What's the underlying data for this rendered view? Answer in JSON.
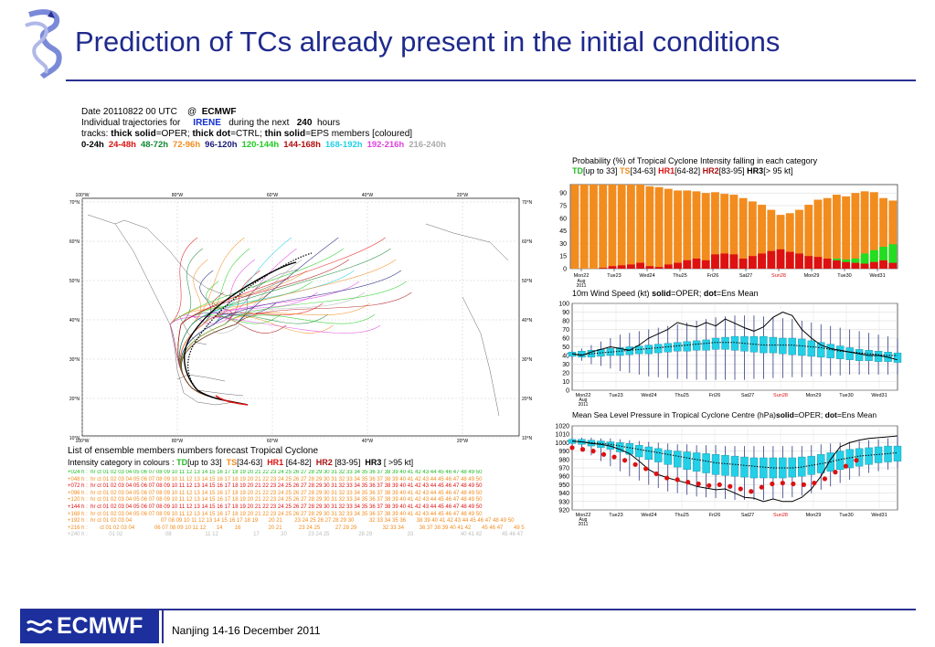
{
  "slide": {
    "title": "Prediction of TCs already present in the initial conditions",
    "footer": "Nanjing 14-16  December 2011",
    "logo_text": "ECMWF",
    "accent": "#2a3192"
  },
  "traj": {
    "l1_a": "Date 20110822 00 UTC",
    "l1_b": "@",
    "l1_c": "ECMWF",
    "l2_a": "Individual trajectories for",
    "l2_b": "IRENE",
    "l2_c": "during the next",
    "l2_d": "240",
    "l2_e": "hours",
    "l3_a": "tracks:",
    "l3_b": "thick solid",
    "l3_c": "=OPER;",
    "l3_d": "thick dot",
    "l3_e": "=CTRL;",
    "l3_f": "thin solid",
    "l3_g": "=EPS members [coloured]",
    "bands": [
      {
        "label": "0-24h",
        "color": "#000000"
      },
      {
        "label": "24-48h",
        "color": "#e01010"
      },
      {
        "label": "48-72h",
        "color": "#118833"
      },
      {
        "label": "72-96h",
        "color": "#f28c1e"
      },
      {
        "label": "96-120h",
        "color": "#1a1a7a"
      },
      {
        "label": "120-144h",
        "color": "#22cc22"
      },
      {
        "label": "144-168h",
        "color": "#b01010"
      },
      {
        "label": "168-192h",
        "color": "#22d0e8"
      },
      {
        "label": "192-216h",
        "color": "#e040e0"
      },
      {
        "label": "216-240h",
        "color": "#aaaaaa"
      }
    ]
  },
  "map": {
    "lon_labels": [
      "100°W",
      "80°W",
      "60°W",
      "40°W",
      "20°W"
    ],
    "lat_labels": [
      "70°N",
      "60°N",
      "50°N",
      "40°N",
      "30°N",
      "20°N",
      "10°N"
    ]
  },
  "ens": {
    "title": "List of ensemble members numbers forecast Tropical Cyclone",
    "l2_a": "Intensity category in colours :",
    "td": "TD",
    "td_r": "[up to 33]",
    "ts": "TS",
    "ts_r": "[34-63]",
    "hr1": "HR1",
    "hr1_r": "[64-82]",
    "hr2": "HR2",
    "hr2_r": "[83-95]",
    "hr3": "HR3",
    "hr3_r": "[ >95 kt]",
    "rows": [
      "+024 h :  hr ct 01 02 03 04 05 06 07 08 09 10 11 12 13 14 15 16 17 18 19 20 21 22 23 24 25 26 27 28 29 30 31 32 33 34 35 36 37 38 39 40 41 42 43 44 45 46 47 48 49 50",
      "+048 h :  hr ct 01 02 03 04 05 06 07 08 09 10 11 12 13 14 15 16 17 18 19 20 21 22 23 24 25 26 27 28 29 30 31 32 33 34 35 36 37 38 39 40 41 42 43 44 45 46 47 48 49 50",
      "+072 h :  hr ct 01 02 03 04 05 06 07 08 09 10 11 12 13 14 15 16 17 18 19 20 21 22 23 24 25 26 27 28 29 30 31 32 33 34 35 36 37 38 39 40 41 42 43 44 45 46 47 48 49 50",
      "+096 h :  hr ct 01 02 03 04 05 06 07 08 09 10 11 12 13 14 15 16 17 18 19 20 21 22 23 24 25 26 27 28 29 30 31 32 33 34 35 36 37 38 39 40 41 42 43 44 45 46 47 48 49 50",
      "+120 h :  hr ct 01 02 03 04 05 06 07 08 09 10 11 12 13 14 15 16 17 18 19 20 21 22 23 24 25 26 27 28 29 30 31 32 33 34 35 36 37 38 39 40 41 42 43 44 45 46 47 48 49 50",
      "+144 h :  hr ct 01 02 03 04 05 06 07 08 09 10 11 12 13 14 15 16 17 18 19 20 21 22 23 24 25 26 27 28 29 30 31 32 33 34 35 36 37 38 39 40 41 42 43 44 45 46 47 48 49 50",
      "+168 h :  hr ct 01 02 03 04 05 06 07 08 09 10 11 12 13 14 15 16 17 18 19 20 21 22 23 24 25 26 27 28 29 30 31 32 33 34 35 36 37 38 39 40 41 42 43 44 45 46 47 48 49 50",
      "+192 h :  hr ct 01 02 03 04                   07 08 09 10 11 12 13 14 15 16 17 18 19       20 21        23 24 25 26 27 28 29 30          32 33 34 35 36       38 39 40 41 42 43 44 45 46 47 48 49 50",
      "+216 h :        ct 01 02 03 04             06 07 08 09 10 11 12       14        16                  20 21           23 24 25          27 28 29                 32 33 34          36 37 38 39 40 41 42       45 46 47       49 50",
      "+240 h :              01 02                            08                      11 12                       17              20              23 24 25                   28 29                       33                               40 41 42             45 46 47       49"
    ]
  },
  "chart_data": [
    {
      "type": "bar",
      "title": "Probability (%) of Tropical Cyclone Intensity falling in each category",
      "legend": [
        {
          "name": "TD",
          "range": "[up to 33]",
          "color": "#22bb22"
        },
        {
          "name": "TS",
          "range": "[34-63]",
          "color": "#f28c1e"
        },
        {
          "name": "HR1",
          "range": "[64-82]",
          "color": "#dd1111"
        },
        {
          "name": "HR2",
          "range": "[83-95]",
          "color": "#aa1111"
        },
        {
          "name": "HR3",
          "range": "[> 95 kt]",
          "color": "#000000"
        }
      ],
      "x_ticks": [
        "Mon22",
        "Tue23",
        "Wed24",
        "Thu25",
        "Fri26",
        "Sat27",
        "Sun28",
        "Mon29",
        "Tue30",
        "Wed31"
      ],
      "x_sub": [
        "Aug",
        "2011"
      ],
      "ylim": [
        0,
        100
      ],
      "y_ticks": [
        0,
        15,
        30,
        45,
        60,
        75,
        90
      ],
      "colors": {
        "ts": "#f28c1e",
        "hr1": "#dd1111",
        "td": "#22dd22"
      },
      "ts_top": [
        100,
        100,
        100,
        100,
        100,
        100,
        100,
        100,
        98,
        97,
        95,
        93,
        93,
        92,
        90,
        91,
        89,
        88,
        84,
        80,
        76,
        70,
        64,
        66,
        70,
        76,
        82,
        84,
        88,
        86,
        90,
        92,
        91,
        84,
        81
      ],
      "hr1": [
        0,
        0,
        0,
        1,
        3,
        4,
        5,
        7,
        3,
        2,
        5,
        7,
        10,
        12,
        10,
        17,
        18,
        17,
        12,
        15,
        18,
        21,
        23,
        20,
        18,
        15,
        14,
        12,
        10,
        8,
        7,
        6,
        8,
        10,
        7
      ],
      "td": [
        0,
        0,
        0,
        0,
        0,
        0,
        0,
        0,
        0,
        0,
        0,
        0,
        0,
        0,
        0,
        0,
        0,
        0,
        0,
        0,
        0,
        0,
        0,
        0,
        0,
        0,
        0,
        0,
        2,
        3,
        5,
        12,
        14,
        16,
        22
      ]
    },
    {
      "type": "line",
      "title_a": "10m Wind Speed (kt)",
      "title_b": "solid",
      "title_c": "=OPER;",
      "title_d": "dot",
      "title_e": "=Ens Mean",
      "x_ticks": [
        "Mon22",
        "Tue23",
        "Wed24",
        "Thu25",
        "Fri26",
        "Sat27",
        "Sun28",
        "Mon29",
        "Tue30",
        "Wed31"
      ],
      "x_sub": [
        "Aug",
        "2011"
      ],
      "ylim": [
        0,
        100
      ],
      "y_ticks": [
        0,
        10,
        20,
        30,
        40,
        50,
        60,
        70,
        80,
        90,
        100
      ],
      "oper": [
        42,
        40,
        44,
        47,
        50,
        48,
        46,
        52,
        60,
        65,
        70,
        78,
        75,
        73,
        78,
        74,
        82,
        77,
        72,
        68,
        73,
        84,
        90,
        86,
        70,
        60,
        52,
        48,
        46,
        44,
        42,
        40,
        40,
        38,
        35
      ],
      "ens_mean": [
        42,
        41,
        42,
        43,
        44,
        45,
        46,
        47,
        48,
        49,
        50,
        51,
        52,
        53,
        54,
        55,
        55,
        55,
        54,
        53,
        52,
        52,
        52,
        52,
        51,
        50,
        49,
        47,
        45,
        44,
        43,
        42,
        41,
        40,
        40
      ],
      "box_low": [
        39,
        38,
        38,
        39,
        40,
        40,
        41,
        42,
        42,
        43,
        44,
        45,
        45,
        46,
        46,
        47,
        47,
        46,
        45,
        44,
        43,
        43,
        42,
        41,
        40,
        39,
        38,
        37,
        36,
        35,
        34,
        34,
        33,
        33,
        32
      ],
      "box_high": [
        44,
        45,
        46,
        47,
        48,
        49,
        50,
        51,
        52,
        53,
        54,
        55,
        56,
        57,
        58,
        60,
        61,
        62,
        62,
        62,
        62,
        61,
        60,
        60,
        59,
        57,
        55,
        53,
        51,
        49,
        47,
        46,
        45,
        44,
        43
      ],
      "wlow": [
        35,
        34,
        30,
        28,
        25,
        22,
        20,
        18,
        16,
        15,
        14,
        13,
        13,
        12,
        12,
        12,
        12,
        12,
        12,
        13,
        13,
        14,
        14,
        15,
        15,
        16,
        16,
        17,
        17,
        18,
        18,
        18,
        18,
        18,
        18
      ],
      "whigh": [
        46,
        48,
        52,
        56,
        60,
        64,
        66,
        68,
        70,
        72,
        74,
        76,
        78,
        80,
        82,
        84,
        85,
        86,
        86,
        86,
        85,
        84,
        83,
        82,
        80,
        78,
        76,
        74,
        72,
        70,
        68,
        66,
        64,
        62,
        60
      ]
    },
    {
      "type": "line",
      "title_a": "Mean Sea Level Pressure in Tropical Cyclone Centre (hPa)",
      "title_b": "solid",
      "title_c": "=OPER;",
      "title_d": "dot",
      "title_e": "=Ens Mean",
      "x_ticks": [
        "Mon22",
        "Tue23",
        "Wed24",
        "Thu25",
        "Fri26",
        "Sat27",
        "Sun28",
        "Mon29",
        "Tue30",
        "Wed31"
      ],
      "x_sub": [
        "Aug",
        "2011"
      ],
      "ylim": [
        920,
        1020
      ],
      "y_ticks": [
        920,
        930,
        940,
        950,
        960,
        970,
        980,
        990,
        1000,
        1010,
        1020
      ],
      "oper": [
        1002,
        1001,
        999,
        998,
        996,
        992,
        987,
        978,
        968,
        962,
        958,
        955,
        952,
        948,
        946,
        944,
        945,
        940,
        935,
        934,
        930,
        933,
        930,
        930,
        935,
        945,
        960,
        980,
        995,
        1000,
        1003,
        1005,
        1006,
        1007,
        1008
      ],
      "ens_mean": [
        1002,
        1001,
        1000,
        999,
        998,
        996,
        994,
        992,
        990,
        988,
        986,
        984,
        982,
        980,
        978,
        976,
        975,
        974,
        973,
        972,
        971,
        970,
        970,
        970,
        971,
        973,
        975,
        977,
        980,
        982,
        984,
        985,
        986,
        987,
        988
      ],
      "box_low": [
        999,
        998,
        996,
        994,
        992,
        989,
        986,
        983,
        980,
        977,
        974,
        971,
        968,
        966,
        964,
        962,
        961,
        960,
        959,
        958,
        958,
        958,
        958,
        959,
        960,
        962,
        964,
        966,
        968,
        970,
        972,
        974,
        976,
        977,
        978
      ],
      "box_high": [
        1004,
        1004,
        1003,
        1002,
        1001,
        1000,
        999,
        997,
        995,
        993,
        991,
        990,
        989,
        988,
        987,
        986,
        985,
        984,
        983,
        982,
        982,
        982,
        982,
        982,
        983,
        984,
        986,
        988,
        990,
        992,
        993,
        994,
        995,
        996,
        996
      ],
      "wlow": [
        996,
        990,
        985,
        978,
        972,
        966,
        960,
        955,
        950,
        946,
        942,
        940,
        938,
        936,
        935,
        934,
        933,
        932,
        932,
        932,
        932,
        933,
        934,
        935,
        937,
        940,
        944,
        948,
        952,
        956,
        960,
        964,
        966,
        968,
        970
      ],
      "whigh": [
        1005,
        1006,
        1006,
        1005,
        1005,
        1004,
        1003,
        1002,
        1001,
        1000,
        999,
        998,
        998,
        997,
        997,
        997,
        996,
        996,
        996,
        996,
        996,
        996,
        996,
        996,
        996,
        997,
        998,
        999,
        1000,
        1001,
        1002,
        1003,
        1004,
        1005,
        1006
      ],
      "analysis_dots": [
        994,
        992,
        990,
        986,
        983,
        979,
        974,
        969,
        963,
        958,
        956,
        953,
        951,
        949,
        950,
        948,
        945,
        942,
        947,
        951,
        952,
        951,
        950,
        952,
        957,
        965,
        972,
        979
      ],
      "dot_color": "#dd1111"
    }
  ]
}
